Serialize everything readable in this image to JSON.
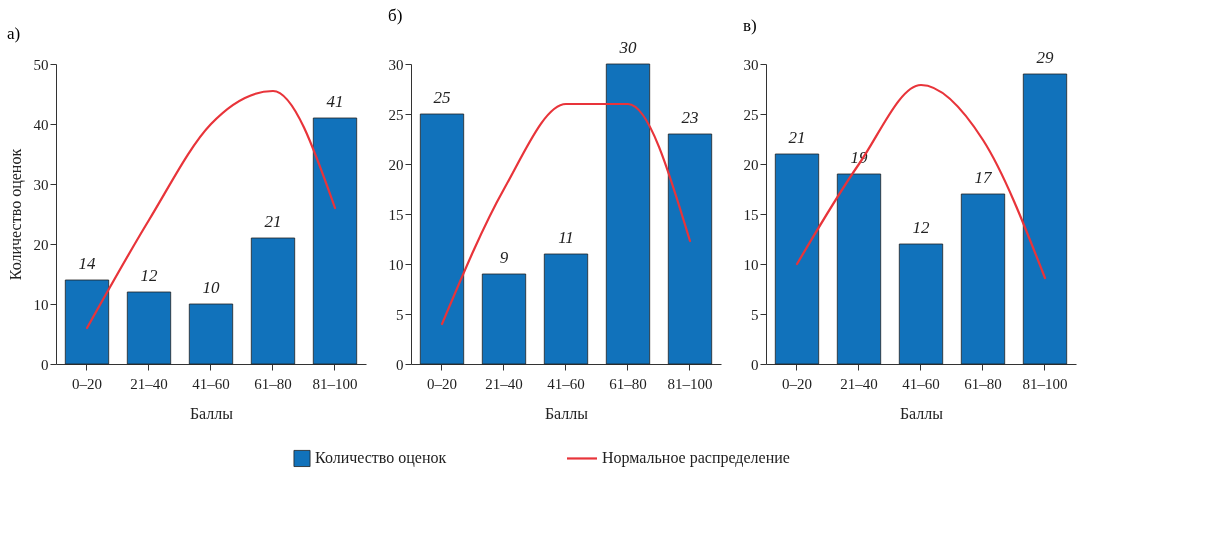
{
  "chart_data": [
    {
      "type": "bar",
      "title": "а)",
      "xlabel": "Баллы",
      "ylabel": "Количество оценок",
      "categories": [
        "0–20",
        "21–40",
        "41–60",
        "61–80",
        "81–100"
      ],
      "ylim": [
        0,
        50
      ],
      "yticks": [
        0,
        10,
        20,
        30,
        40,
        50
      ],
      "grid": false,
      "legend": "bottom",
      "series": [
        {
          "name": "Количество оценок",
          "color": "#1172bb",
          "values": [
            14,
            12,
            10,
            21,
            41
          ],
          "value_labels": [
            "14",
            "12",
            "10",
            "21",
            "41"
          ]
        },
        {
          "name": "Нормальное распределение",
          "type": "line",
          "color": "#e8343a",
          "values": [
            6,
            24,
            40,
            45.5,
            26
          ]
        }
      ]
    },
    {
      "type": "bar",
      "title": "б)",
      "xlabel": "Баллы",
      "categories": [
        "0–20",
        "21–40",
        "41–60",
        "61–80",
        "81–100"
      ],
      "ylim": [
        0,
        30
      ],
      "yticks": [
        0,
        5,
        10,
        15,
        20,
        25,
        30
      ],
      "grid": false,
      "series": [
        {
          "color": "#1172bb",
          "values": [
            25,
            9,
            11,
            30,
            23
          ],
          "value_labels": [
            "25",
            "9",
            "11",
            "30",
            "23"
          ]
        },
        {
          "type": "line",
          "color": "#e8343a",
          "values": [
            4,
            17.5,
            26,
            26,
            12.3
          ]
        }
      ]
    },
    {
      "type": "bar",
      "title": "в)",
      "xlabel": "Баллы",
      "categories": [
        "0–20",
        "21–40",
        "41–60",
        "61–80",
        "81–100"
      ],
      "ylim": [
        0,
        30
      ],
      "yticks": [
        0,
        5,
        10,
        15,
        20,
        25,
        30
      ],
      "grid": false,
      "series": [
        {
          "color": "#1172bb",
          "values": [
            21,
            19,
            12,
            17,
            29
          ],
          "value_labels": [
            "21",
            "19",
            "12",
            "17",
            "29"
          ]
        },
        {
          "type": "line",
          "color": "#e8343a",
          "values": [
            10,
            20,
            27.9,
            22.4,
            8.6
          ]
        }
      ]
    }
  ]
}
